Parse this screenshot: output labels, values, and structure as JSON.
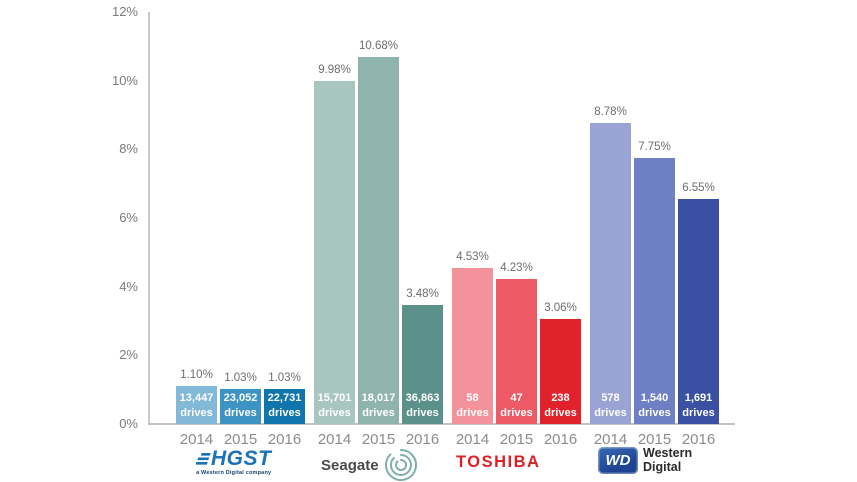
{
  "chart_data": {
    "type": "bar",
    "title": "",
    "xlabel": "",
    "ylabel": "",
    "ylim": [
      0,
      12
    ],
    "grid": false,
    "legend_position": "none",
    "y_ticks": [
      {
        "label": "0%",
        "value": 0
      },
      {
        "label": "2%",
        "value": 2
      },
      {
        "label": "4%",
        "value": 4
      },
      {
        "label": "6%",
        "value": 6
      },
      {
        "label": "8%",
        "value": 8
      },
      {
        "label": "10%",
        "value": 10
      },
      {
        "label": "12%",
        "value": 12
      }
    ],
    "categories": [
      "2014",
      "2015",
      "2016"
    ],
    "drives_word": "drives",
    "series": [
      {
        "name": "HGST",
        "values": [
          1.1,
          1.03,
          1.03
        ],
        "value_labels": [
          "1.10%",
          "1.03%",
          "1.03%"
        ],
        "drive_counts": [
          "13,447",
          "23,052",
          "22,731"
        ],
        "colors": [
          "#82b8d8",
          "#3d93c3",
          "#0f75ac"
        ]
      },
      {
        "name": "Seagate",
        "values": [
          9.98,
          10.68,
          3.48
        ],
        "value_labels": [
          "9.98%",
          "10.68%",
          "3.48%"
        ],
        "drive_counts": [
          "15,701",
          "18,017",
          "36,863"
        ],
        "colors": [
          "#a9c5c0",
          "#8fb3ad",
          "#5c908a"
        ]
      },
      {
        "name": "Toshiba",
        "values": [
          4.53,
          4.23,
          3.06
        ],
        "value_labels": [
          "4.53%",
          "4.23%",
          "3.06%"
        ],
        "drive_counts": [
          "58",
          "47",
          "238"
        ],
        "colors": [
          "#f4929b",
          "#ed5a66",
          "#e1212b"
        ]
      },
      {
        "name": "Western Digital",
        "values": [
          8.78,
          7.75,
          6.55
        ],
        "value_labels": [
          "8.78%",
          "7.75%",
          "6.55%"
        ],
        "drive_counts": [
          "578",
          "1,540",
          "1,691"
        ],
        "colors": [
          "#99a4d4",
          "#6e7fc3",
          "#3a51a3"
        ]
      }
    ]
  },
  "logos": {
    "hgst": {
      "text": "HGST",
      "subtext": "a Western Digital company",
      "color": "#1a72b9"
    },
    "seagate": {
      "text": "Seagate",
      "spiral_color": "#7fb0a6"
    },
    "toshiba": {
      "text": "TOSHIBA",
      "color": "#dd1f26"
    },
    "wd": {
      "badge": "WD",
      "line1": "Western",
      "line2": "Digital",
      "badge_color": "#1e4392"
    }
  }
}
